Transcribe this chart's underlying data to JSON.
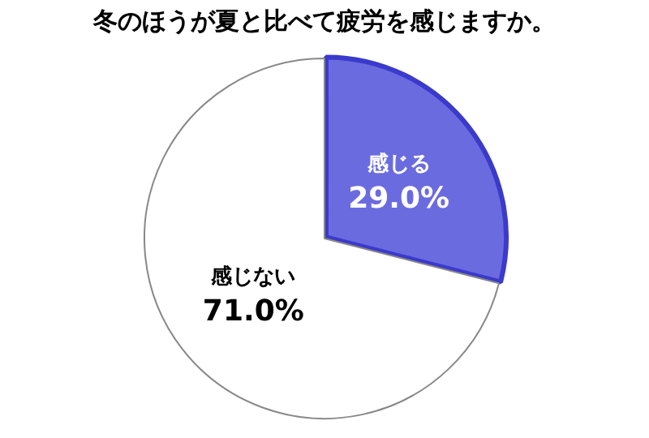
{
  "chart_data": {
    "type": "pie",
    "title": "冬のほうが夏と比べて疲労を感じますか。",
    "categories": [
      "感じる",
      "感じない"
    ],
    "values": [
      29.0,
      71.0
    ],
    "colors": [
      "#6b6be0",
      "#ffffff"
    ],
    "value_labels": [
      "29.0%",
      "71.0%"
    ],
    "legend": false
  }
}
